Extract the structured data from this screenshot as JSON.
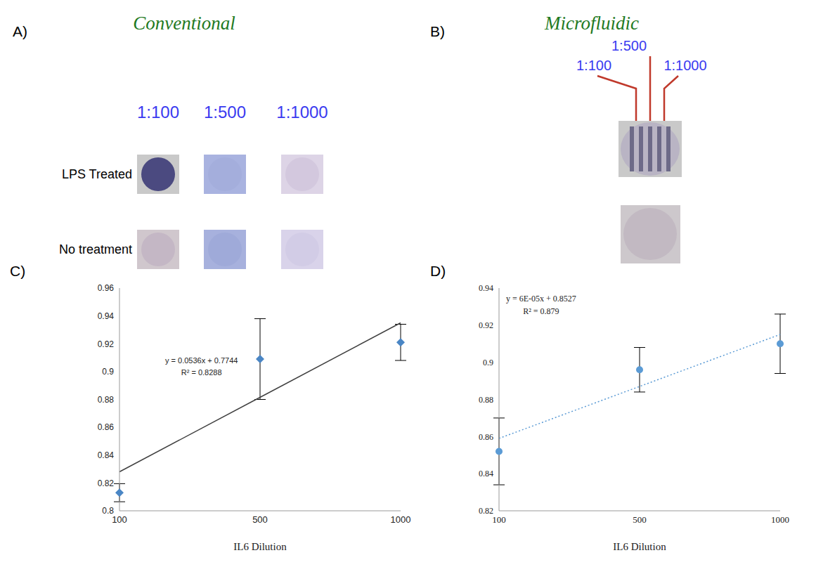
{
  "panel_labels": [
    "A)",
    "B)",
    "C)",
    "D)"
  ],
  "panels": [
    {
      "title": "Conventional",
      "columns": [
        "1:100",
        "1:500",
        "1:1000"
      ],
      "rows": [
        "LPS Treated",
        "No treatment"
      ]
    },
    {
      "title": "Microfluidic",
      "channels": [
        "1:100",
        "1:500",
        "1:1000"
      ]
    }
  ],
  "chart_data": [
    {
      "type": "scatter",
      "x_label": "IL6 Dilution",
      "categories": [
        "100",
        "500",
        "1000"
      ],
      "series": [
        {
          "type": "scatter",
          "color": "#4a86c5",
          "marker": "diamond",
          "values": [
            0.813,
            0.909,
            0.921
          ],
          "errors": [
            0.0065,
            0.029,
            0.013
          ]
        },
        {
          "type": "line",
          "color": "#404040",
          "line_style": "solid",
          "values": [
            0.828,
            0.8815,
            0.935
          ]
        }
      ],
      "annotations": [
        "y = 0.0536x + 0.7744",
        "R² = 0.8288"
      ],
      "ylim": [
        0.8,
        0.96
      ],
      "yticks": [
        0.8,
        0.82,
        0.84,
        0.86,
        0.88,
        0.9,
        0.92,
        0.94,
        0.96
      ],
      "grid": false
    },
    {
      "type": "scatter",
      "x_label": "IL6 Dilution",
      "categories": [
        "100",
        "500",
        "1000"
      ],
      "series": [
        {
          "type": "scatter",
          "color": "#5b9bd5",
          "marker": "circle",
          "values": [
            0.852,
            0.896,
            0.91
          ],
          "errors": [
            0.018,
            0.012,
            0.016
          ]
        },
        {
          "type": "line",
          "color": "#5b9bd5",
          "line_style": "dotted",
          "values": [
            0.859,
            0.887,
            0.915
          ]
        }
      ],
      "annotations": [
        "y = 6E-05x + 0.8527",
        "R² = 0.879"
      ],
      "ylim": [
        0.82,
        0.94
      ],
      "yticks": [
        0.82,
        0.84,
        0.86,
        0.88,
        0.9,
        0.92,
        0.94
      ],
      "grid": false
    }
  ]
}
